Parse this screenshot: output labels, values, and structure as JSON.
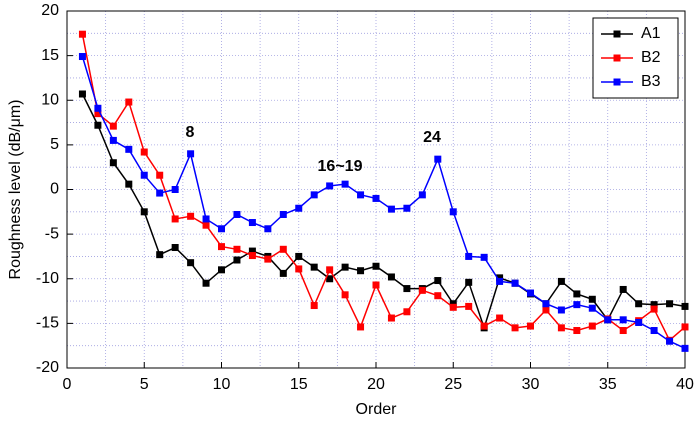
{
  "chart_data": {
    "type": "line",
    "x_label": "Order",
    "y_label": "Roughness level (dB/μm)",
    "x": [
      1,
      2,
      3,
      4,
      5,
      6,
      7,
      8,
      9,
      10,
      11,
      12,
      13,
      14,
      15,
      16,
      17,
      18,
      19,
      20,
      21,
      22,
      23,
      24,
      25,
      26,
      27,
      28,
      29,
      30,
      31,
      32,
      33,
      34,
      35,
      36,
      37,
      38,
      39,
      40
    ],
    "series": [
      {
        "name": "A1",
        "color": "#000000",
        "values": [
          10.7,
          7.2,
          3.0,
          0.6,
          -2.5,
          -7.3,
          -6.5,
          -8.2,
          -10.5,
          -9.0,
          -7.9,
          -6.9,
          -7.5,
          -9.4,
          -7.5,
          -8.7,
          -10.0,
          -8.7,
          -9.1,
          -8.6,
          -9.8,
          -11.1,
          -11.1,
          -10.2,
          -12.8,
          -10.4,
          -15.5,
          -9.9,
          -10.5,
          -11.7,
          -12.8,
          -10.3,
          -11.7,
          -12.3,
          -14.6,
          -11.2,
          -12.8,
          -12.9,
          -12.8,
          -13.1
        ]
      },
      {
        "name": "B2",
        "color": "#ff0000",
        "values": [
          17.4,
          8.5,
          7.1,
          9.8,
          4.2,
          1.6,
          -3.3,
          -3.0,
          -4.0,
          -6.4,
          -6.7,
          -7.4,
          -7.8,
          -6.7,
          -8.9,
          -13.0,
          -9.0,
          -11.8,
          -15.4,
          -10.7,
          -14.4,
          -13.7,
          -11.3,
          -11.9,
          -13.2,
          -13.1,
          -15.3,
          -14.4,
          -15.5,
          -15.3,
          -13.5,
          -15.5,
          -15.8,
          -15.3,
          -14.5,
          -15.8,
          -14.7,
          -13.4,
          -16.9,
          -15.4
        ]
      },
      {
        "name": "B3",
        "color": "#0000ff",
        "values": [
          14.9,
          9.1,
          5.5,
          4.5,
          1.6,
          -0.4,
          0.0,
          4.0,
          -3.3,
          -4.4,
          -2.8,
          -3.7,
          -4.4,
          -2.8,
          -2.1,
          -0.6,
          0.4,
          0.6,
          -0.6,
          -1.0,
          -2.2,
          -2.1,
          -0.6,
          3.4,
          -2.5,
          -7.5,
          -7.6,
          -10.3,
          -10.5,
          -11.6,
          -12.8,
          -13.5,
          -12.9,
          -13.3,
          -14.6,
          -14.6,
          -14.9,
          -15.8,
          -17.0,
          -17.8
        ]
      }
    ],
    "annotations": [
      "8",
      "16~19",
      "24"
    ],
    "xlim": [
      0,
      40
    ],
    "xticks": [
      0,
      5,
      10,
      15,
      20,
      25,
      30,
      35,
      40
    ],
    "ylim": [
      -20,
      20
    ],
    "yticks": [
      -20,
      -15,
      -10,
      -5,
      0,
      5,
      10,
      15,
      20
    ],
    "grid": true,
    "legend": "top-right"
  }
}
